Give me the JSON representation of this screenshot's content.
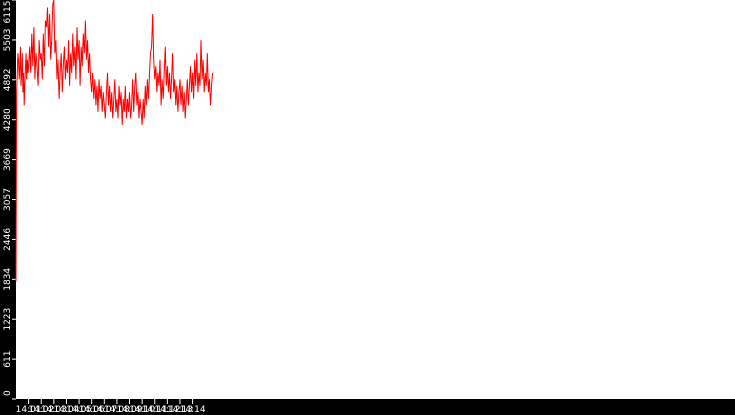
{
  "chart_data": {
    "type": "line",
    "title": "",
    "xlabel": "",
    "ylabel": "",
    "ylim": [
      0,
      6115
    ],
    "xlim_minutes": [
      14.0,
      14.95
    ],
    "yticks": [
      {
        "value": 0,
        "label": "0"
      },
      {
        "value": 611,
        "label": "611"
      },
      {
        "value": 1223,
        "label": "1223"
      },
      {
        "value": 1834,
        "label": "1834"
      },
      {
        "value": 2446,
        "label": "2446"
      },
      {
        "value": 3057,
        "label": "3057"
      },
      {
        "value": 3669,
        "label": "3669"
      },
      {
        "value": 4280,
        "label": "4280"
      },
      {
        "value": 4892,
        "label": "4892"
      },
      {
        "value": 5503,
        "label": "5503"
      },
      {
        "value": 6115,
        "label": "6115"
      }
    ],
    "xticks": [
      {
        "value": "14:01",
        "label": "14:01"
      },
      {
        "value": "14:02",
        "label": "14:02"
      },
      {
        "value": "14:03",
        "label": "14:03"
      },
      {
        "value": "14:04",
        "label": "14:04"
      },
      {
        "value": "14:05",
        "label": "14:05"
      },
      {
        "value": "14:06",
        "label": "14:06"
      },
      {
        "value": "14:07",
        "label": "14:07"
      },
      {
        "value": "14:08",
        "label": "14:08"
      },
      {
        "value": "14:09",
        "label": "14:09"
      },
      {
        "value": "14:10",
        "label": "14:10"
      },
      {
        "value": "14:11",
        "label": "14:11"
      },
      {
        "value": "14:12",
        "label": "14:12"
      },
      {
        "value": "14:13",
        "label": "14:13"
      },
      {
        "value": "14:14",
        "label": "14:14"
      }
    ],
    "grid": false,
    "legend": "none",
    "series": [
      {
        "color": "#ff0000",
        "points": [
          [
            "14:00:00",
            1800
          ],
          [
            "14:00:03",
            4700
          ],
          [
            "14:00:06",
            5000
          ],
          [
            "14:00:09",
            5300
          ],
          [
            "14:00:12",
            5200
          ],
          [
            "14:00:15",
            4900
          ],
          [
            "14:00:18",
            5100
          ],
          [
            "14:00:21",
            5400
          ],
          [
            "14:00:24",
            4800
          ],
          [
            "14:00:27",
            5000
          ],
          [
            "14:00:30",
            5300
          ],
          [
            "14:00:33",
            4700
          ],
          [
            "14:00:36",
            5000
          ],
          [
            "14:00:39",
            4500
          ],
          [
            "14:00:42",
            4800
          ],
          [
            "14:00:45",
            5100
          ],
          [
            "14:00:48",
            5300
          ],
          [
            "14:00:51",
            4900
          ],
          [
            "14:00:54",
            5200
          ],
          [
            "14:00:57",
            5000
          ],
          [
            "14:01:00",
            5100
          ],
          [
            "14:01:05",
            5400
          ],
          [
            "14:01:10",
            5000
          ],
          [
            "14:01:15",
            5600
          ],
          [
            "14:01:20",
            5100
          ],
          [
            "14:01:25",
            5700
          ],
          [
            "14:01:30",
            4900
          ],
          [
            "14:01:35",
            5300
          ],
          [
            "14:01:40",
            5100
          ],
          [
            "14:01:45",
            4800
          ],
          [
            "14:01:50",
            5500
          ],
          [
            "14:01:55",
            5200
          ],
          [
            "14:02:00",
            5300
          ],
          [
            "14:02:05",
            4900
          ],
          [
            "14:02:10",
            5600
          ],
          [
            "14:02:15",
            5100
          ],
          [
            "14:02:20",
            5800
          ],
          [
            "14:02:25",
            5700
          ],
          [
            "14:02:30",
            6000
          ],
          [
            "14:02:35",
            5400
          ],
          [
            "14:02:40",
            5900
          ],
          [
            "14:02:45",
            5200
          ],
          [
            "14:02:50",
            5500
          ],
          [
            "14:02:55",
            6050
          ],
          [
            "14:03:00",
            6115
          ],
          [
            "14:03:05",
            5300
          ],
          [
            "14:03:10",
            5500
          ],
          [
            "14:03:15",
            4900
          ],
          [
            "14:03:20",
            5200
          ],
          [
            "14:03:25",
            4600
          ],
          [
            "14:03:30",
            5000
          ],
          [
            "14:03:35",
            5300
          ],
          [
            "14:03:40",
            4700
          ],
          [
            "14:03:45",
            5100
          ],
          [
            "14:03:50",
            5400
          ],
          [
            "14:03:55",
            4900
          ],
          [
            "14:04:00",
            5200
          ],
          [
            "14:04:05",
            5000
          ],
          [
            "14:04:10",
            5500
          ],
          [
            "14:04:15",
            4800
          ],
          [
            "14:04:20",
            5300
          ],
          [
            "14:04:25",
            5000
          ],
          [
            "14:04:30",
            5600
          ],
          [
            "14:04:35",
            5100
          ],
          [
            "14:04:40",
            5400
          ],
          [
            "14:04:45",
            4900
          ],
          [
            "14:04:50",
            5700
          ],
          [
            "14:04:55",
            5200
          ],
          [
            "14:05:00",
            5500
          ],
          [
            "14:05:05",
            4800
          ],
          [
            "14:05:10",
            5400
          ],
          [
            "14:05:15",
            5100
          ],
          [
            "14:05:20",
            5600
          ],
          [
            "14:05:25",
            5300
          ],
          [
            "14:05:30",
            5800
          ],
          [
            "14:05:35",
            5200
          ],
          [
            "14:05:40",
            5500
          ],
          [
            "14:05:45",
            5000
          ],
          [
            "14:05:50",
            5300
          ],
          [
            "14:05:55",
            4900
          ],
          [
            "14:06:00",
            4700
          ],
          [
            "14:06:05",
            5000
          ],
          [
            "14:06:10",
            4600
          ],
          [
            "14:06:15",
            4900
          ],
          [
            "14:06:20",
            4500
          ],
          [
            "14:06:25",
            4800
          ],
          [
            "14:06:30",
            4400
          ],
          [
            "14:06:35",
            4900
          ],
          [
            "14:06:40",
            4600
          ],
          [
            "14:06:45",
            4800
          ],
          [
            "14:06:50",
            4400
          ],
          [
            "14:06:55",
            4700
          ],
          [
            "14:07:00",
            4500
          ],
          [
            "14:07:05",
            4300
          ],
          [
            "14:07:10",
            4700
          ],
          [
            "14:07:15",
            5000
          ],
          [
            "14:07:20",
            4500
          ],
          [
            "14:07:25",
            4800
          ],
          [
            "14:07:30",
            4400
          ],
          [
            "14:07:35",
            4700
          ],
          [
            "14:07:40",
            4300
          ],
          [
            "14:07:45",
            4600
          ],
          [
            "14:07:50",
            4900
          ],
          [
            "14:07:55",
            4400
          ],
          [
            "14:08:00",
            4600
          ],
          [
            "14:08:05",
            4300
          ],
          [
            "14:08:10",
            4800
          ],
          [
            "14:08:15",
            4500
          ],
          [
            "14:08:20",
            4700
          ],
          [
            "14:08:25",
            4200
          ],
          [
            "14:08:30",
            4600
          ],
          [
            "14:08:35",
            4400
          ],
          [
            "14:08:40",
            4800
          ],
          [
            "14:08:45",
            4300
          ],
          [
            "14:08:50",
            4600
          ],
          [
            "14:08:55",
            4400
          ],
          [
            "14:09:00",
            4700
          ],
          [
            "14:09:05",
            4300
          ],
          [
            "14:09:10",
            4500
          ],
          [
            "14:09:15",
            4900
          ],
          [
            "14:09:20",
            4400
          ],
          [
            "14:09:25",
            4800
          ],
          [
            "14:09:30",
            5000
          ],
          [
            "14:09:35",
            4500
          ],
          [
            "14:09:40",
            4700
          ],
          [
            "14:09:45",
            4300
          ],
          [
            "14:09:50",
            4600
          ],
          [
            "14:09:55",
            4400
          ],
          [
            "14:10:00",
            4200
          ],
          [
            "14:10:05",
            4600
          ],
          [
            "14:10:10",
            4300
          ],
          [
            "14:10:15",
            4800
          ],
          [
            "14:10:20",
            4500
          ],
          [
            "14:10:25",
            4900
          ],
          [
            "14:10:30",
            4600
          ],
          [
            "14:10:35",
            5000
          ],
          [
            "14:10:40",
            5300
          ],
          [
            "14:10:45",
            5400
          ],
          [
            "14:10:50",
            5900
          ],
          [
            "14:10:55",
            5200
          ],
          [
            "14:11:00",
            4900
          ],
          [
            "14:11:05",
            5100
          ],
          [
            "14:11:10",
            4700
          ],
          [
            "14:11:15",
            5000
          ],
          [
            "14:11:20",
            4800
          ],
          [
            "14:11:25",
            5200
          ],
          [
            "14:11:30",
            4500
          ],
          [
            "14:11:35",
            4900
          ],
          [
            "14:11:40",
            4600
          ],
          [
            "14:11:45",
            5000
          ],
          [
            "14:11:50",
            5400
          ],
          [
            "14:11:55",
            4800
          ],
          [
            "14:12:00",
            5100
          ],
          [
            "14:12:05",
            4700
          ],
          [
            "14:12:10",
            5000
          ],
          [
            "14:12:15",
            4600
          ],
          [
            "14:12:20",
            4900
          ],
          [
            "14:12:25",
            5300
          ],
          [
            "14:12:30",
            4700
          ],
          [
            "14:12:35",
            4900
          ],
          [
            "14:12:40",
            4500
          ],
          [
            "14:12:45",
            4800
          ],
          [
            "14:12:50",
            4400
          ],
          [
            "14:12:55",
            4700
          ],
          [
            "14:13:00",
            4900
          ],
          [
            "14:13:05",
            4500
          ],
          [
            "14:13:10",
            4800
          ],
          [
            "14:13:15",
            4400
          ],
          [
            "14:13:20",
            4700
          ],
          [
            "14:13:25",
            4300
          ],
          [
            "14:13:30",
            4600
          ],
          [
            "14:13:35",
            4900
          ],
          [
            "14:13:40",
            4500
          ],
          [
            "14:13:45",
            4800
          ],
          [
            "14:13:50",
            5100
          ],
          [
            "14:13:55",
            4700
          ],
          [
            "14:14:00",
            5000
          ],
          [
            "14:14:05",
            4600
          ],
          [
            "14:14:10",
            5200
          ],
          [
            "14:14:15",
            4800
          ],
          [
            "14:14:20",
            5300
          ],
          [
            "14:14:25",
            4700
          ],
          [
            "14:14:30",
            5000
          ],
          [
            "14:14:35",
            4800
          ],
          [
            "14:14:40",
            5500
          ],
          [
            "14:14:45",
            4900
          ],
          [
            "14:14:50",
            5200
          ],
          [
            "14:14:55",
            4700
          ],
          [
            "14:15:00",
            5000
          ],
          [
            "14:15:05",
            4800
          ],
          [
            "14:15:10",
            5300
          ],
          [
            "14:15:15",
            4700
          ],
          [
            "14:15:20",
            4900
          ],
          [
            "14:15:25",
            4500
          ],
          [
            "14:15:30",
            4800
          ],
          [
            "14:15:35",
            5000
          ]
        ]
      }
    ]
  }
}
